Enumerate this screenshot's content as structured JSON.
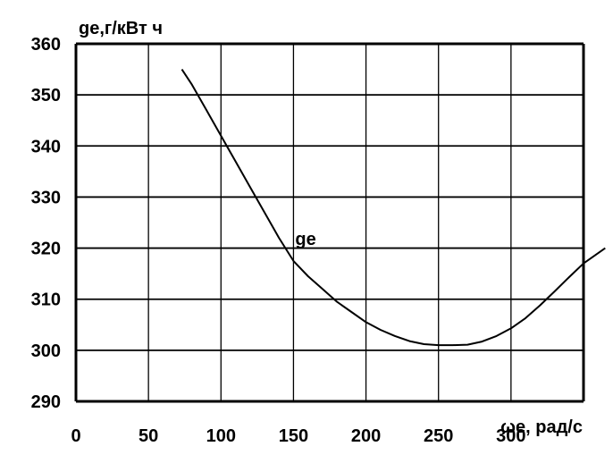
{
  "chart_data": {
    "type": "line",
    "title": "",
    "ylabel": "ge,г/кВт ч",
    "xlabel": "ωe, рад/с",
    "xlim": [
      0,
      350
    ],
    "ylim": [
      290,
      360
    ],
    "x_ticks": [
      0,
      50,
      100,
      150,
      200,
      250,
      300
    ],
    "y_ticks": [
      290,
      300,
      310,
      320,
      330,
      340,
      350,
      360
    ],
    "grid": true,
    "series": [
      {
        "name": "ge",
        "x": [
          73,
          80,
          90,
          100,
          110,
          120,
          130,
          140,
          150,
          160,
          170,
          180,
          190,
          200,
          210,
          220,
          230,
          240,
          250,
          260,
          270,
          280,
          290,
          300,
          310,
          320,
          330,
          340,
          350,
          365
        ],
        "y": [
          355,
          352,
          347,
          342,
          337,
          332,
          327,
          322,
          317.5,
          314.5,
          312,
          309.5,
          307.5,
          305.5,
          304,
          302.8,
          301.8,
          301.2,
          301,
          301,
          301.1,
          301.7,
          302.8,
          304.3,
          306.3,
          308.8,
          311.5,
          314.3,
          317,
          320
        ]
      }
    ]
  }
}
